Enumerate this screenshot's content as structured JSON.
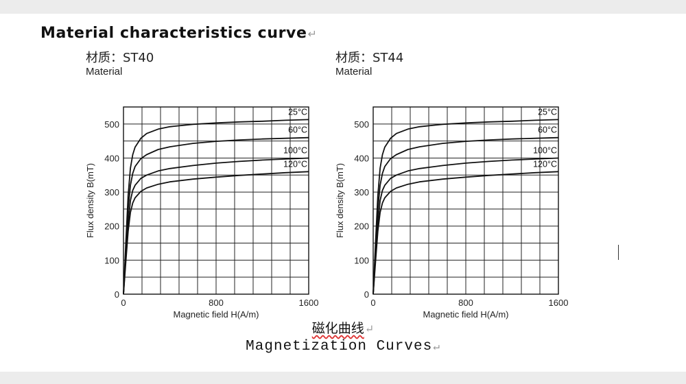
{
  "document": {
    "heading": "Material characteristics curve",
    "return_mark": "↵",
    "caption_cn": "磁化曲线",
    "caption_en": "Magnetization Curves"
  },
  "chart_data": [
    {
      "type": "line",
      "title": "材质：ST40",
      "subtitle": "Material",
      "xlabel": "Magnetic field H(A/m)",
      "ylabel": "Flux density B(mT)",
      "xlim": [
        0,
        1600
      ],
      "ylim": [
        0,
        550
      ],
      "xticks": [
        0,
        800,
        1600
      ],
      "yticks": [
        0,
        100,
        200,
        300,
        400,
        500
      ],
      "grid": true,
      "series": [
        {
          "name": "25°C",
          "x": [
            0,
            20,
            40,
            60,
            80,
            100,
            150,
            200,
            300,
            400,
            600,
            800,
            1000,
            1200,
            1400,
            1600
          ],
          "y": [
            0,
            150,
            290,
            370,
            410,
            432,
            458,
            472,
            485,
            492,
            499,
            503,
            506,
            508,
            511,
            513
          ]
        },
        {
          "name": "60°C",
          "x": [
            0,
            20,
            40,
            60,
            80,
            100,
            150,
            200,
            300,
            400,
            600,
            800,
            1000,
            1200,
            1400,
            1600
          ],
          "y": [
            0,
            130,
            250,
            320,
            355,
            375,
            398,
            410,
            425,
            433,
            443,
            449,
            453,
            456,
            458,
            460
          ]
        },
        {
          "name": "100°C",
          "x": [
            0,
            20,
            40,
            60,
            80,
            100,
            150,
            200,
            300,
            400,
            600,
            800,
            1000,
            1200,
            1400,
            1600
          ],
          "y": [
            0,
            110,
            210,
            275,
            305,
            320,
            340,
            350,
            362,
            369,
            378,
            385,
            390,
            394,
            397,
            400
          ]
        },
        {
          "name": "120°C",
          "x": [
            0,
            20,
            40,
            60,
            80,
            100,
            150,
            200,
            300,
            400,
            600,
            800,
            1000,
            1200,
            1400,
            1600
          ],
          "y": [
            0,
            95,
            185,
            240,
            268,
            283,
            302,
            312,
            323,
            330,
            338,
            344,
            349,
            353,
            357,
            360
          ]
        }
      ]
    },
    {
      "type": "line",
      "title": "材质：ST44",
      "subtitle": "Material",
      "xlabel": "Magnetic field H(A/m)",
      "ylabel": "Flux density B(mT)",
      "xlim": [
        0,
        1600
      ],
      "ylim": [
        0,
        550
      ],
      "xticks": [
        0,
        800,
        1600
      ],
      "yticks": [
        0,
        100,
        200,
        300,
        400,
        500
      ],
      "grid": true,
      "series": [
        {
          "name": "25°C",
          "x": [
            0,
            20,
            40,
            60,
            80,
            100,
            150,
            200,
            300,
            400,
            600,
            800,
            1000,
            1200,
            1400,
            1600
          ],
          "y": [
            0,
            150,
            290,
            370,
            410,
            432,
            458,
            472,
            485,
            492,
            499,
            503,
            506,
            508,
            511,
            513
          ]
        },
        {
          "name": "60°C",
          "x": [
            0,
            20,
            40,
            60,
            80,
            100,
            150,
            200,
            300,
            400,
            600,
            800,
            1000,
            1200,
            1400,
            1600
          ],
          "y": [
            0,
            130,
            250,
            320,
            355,
            375,
            398,
            410,
            425,
            433,
            443,
            449,
            453,
            456,
            458,
            460
          ]
        },
        {
          "name": "100°C",
          "x": [
            0,
            20,
            40,
            60,
            80,
            100,
            150,
            200,
            300,
            400,
            600,
            800,
            1000,
            1200,
            1400,
            1600
          ],
          "y": [
            0,
            110,
            210,
            275,
            305,
            320,
            340,
            350,
            362,
            369,
            378,
            385,
            390,
            394,
            397,
            400
          ]
        },
        {
          "name": "120°C",
          "x": [
            0,
            20,
            40,
            60,
            80,
            100,
            150,
            200,
            300,
            400,
            600,
            800,
            1000,
            1200,
            1400,
            1600
          ],
          "y": [
            0,
            95,
            185,
            240,
            268,
            283,
            302,
            312,
            323,
            330,
            338,
            344,
            349,
            353,
            357,
            360
          ]
        }
      ]
    }
  ]
}
